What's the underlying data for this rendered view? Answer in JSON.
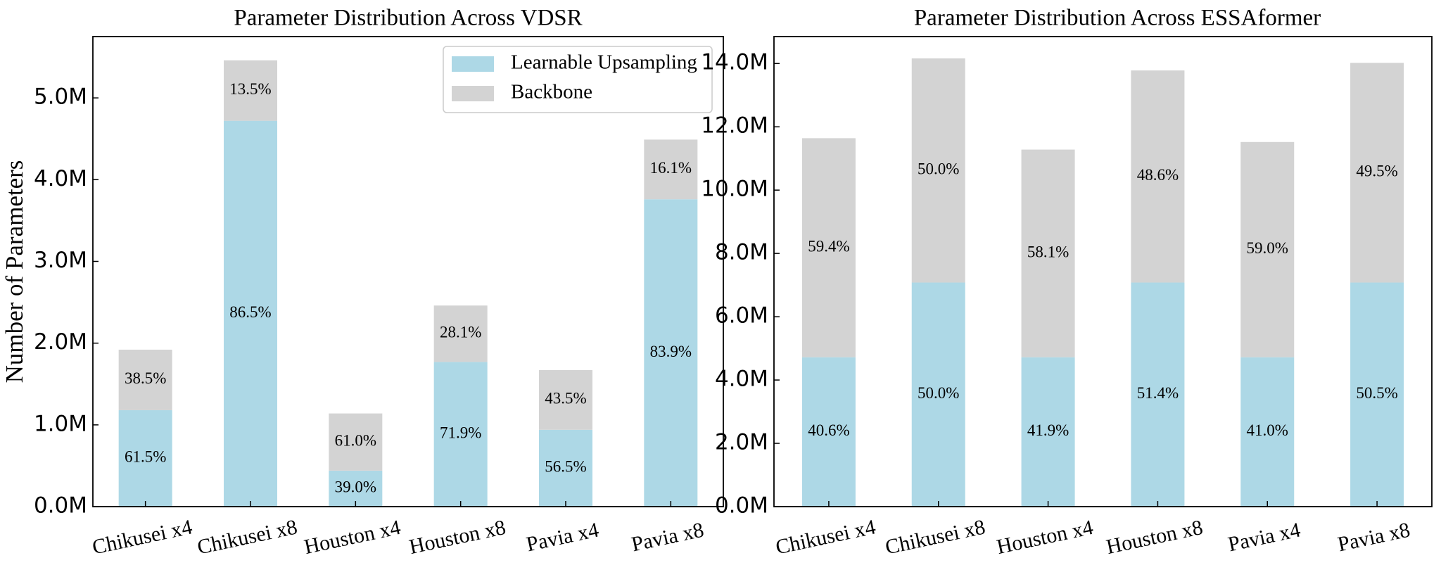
{
  "colors": {
    "upsampling": "#add8e6",
    "backbone": "#d3d3d3",
    "axis": "#000000",
    "legend_border": "#cccccc"
  },
  "legend": {
    "placement": "top-right (left chart)",
    "items": [
      {
        "label": "Learnable Upsampling",
        "color": "#add8e6"
      },
      {
        "label": "Backbone",
        "color": "#d3d3d3"
      }
    ]
  },
  "chart_data": [
    {
      "type": "bar",
      "stacked": true,
      "title": "Parameter Distribution Across VDSR",
      "ylabel": "Number of Parameters",
      "xlabel": "",
      "categories": [
        "Chikusei x4",
        "Chikusei x8",
        "Houston x4",
        "Houston x8",
        "Pavia x4",
        "Pavia x8"
      ],
      "ylim": [
        0,
        5.75
      ],
      "yticks": [
        0,
        1,
        2,
        3,
        4,
        5
      ],
      "ytick_labels": [
        "0.0M",
        "1.0M",
        "2.0M",
        "3.0M",
        "4.0M",
        "5.0M"
      ],
      "unit": "M",
      "series": [
        {
          "name": "Learnable Upsampling",
          "values": [
            1.18,
            4.72,
            0.44,
            1.77,
            0.94,
            3.76
          ],
          "labels": [
            "61.5%",
            "86.5%",
            "39.0%",
            "71.9%",
            "56.5%",
            "83.9%"
          ]
        },
        {
          "name": "Backbone",
          "values": [
            0.74,
            0.74,
            0.7,
            0.69,
            0.73,
            0.73
          ],
          "labels": [
            "38.5%",
            "13.5%",
            "61.0%",
            "28.1%",
            "43.5%",
            "16.1%"
          ]
        }
      ],
      "grid": false
    },
    {
      "type": "bar",
      "stacked": true,
      "title": "Parameter Distribution Across ESSAformer",
      "ylabel": "",
      "xlabel": "",
      "categories": [
        "Chikusei x4",
        "Chikusei x8",
        "Houston x4",
        "Houston x8",
        "Pavia x4",
        "Pavia x8"
      ],
      "ylim": [
        0,
        14.85
      ],
      "yticks": [
        0,
        2,
        4,
        6,
        8,
        10,
        12,
        14
      ],
      "ytick_labels": [
        "0.0M",
        "2.0M",
        "4.0M",
        "6.0M",
        "8.0M",
        "10.0M",
        "12.0M",
        "14.0M"
      ],
      "unit": "M",
      "series": [
        {
          "name": "Learnable Upsampling",
          "values": [
            4.72,
            7.08,
            4.72,
            7.08,
            4.72,
            7.08
          ],
          "labels": [
            "40.6%",
            "50.0%",
            "41.9%",
            "51.4%",
            "41.0%",
            "50.5%"
          ]
        },
        {
          "name": "Backbone",
          "values": [
            6.92,
            7.08,
            6.56,
            6.7,
            6.8,
            6.94
          ],
          "labels": [
            "59.4%",
            "50.0%",
            "58.1%",
            "48.6%",
            "59.0%",
            "49.5%"
          ]
        }
      ],
      "grid": false
    }
  ]
}
